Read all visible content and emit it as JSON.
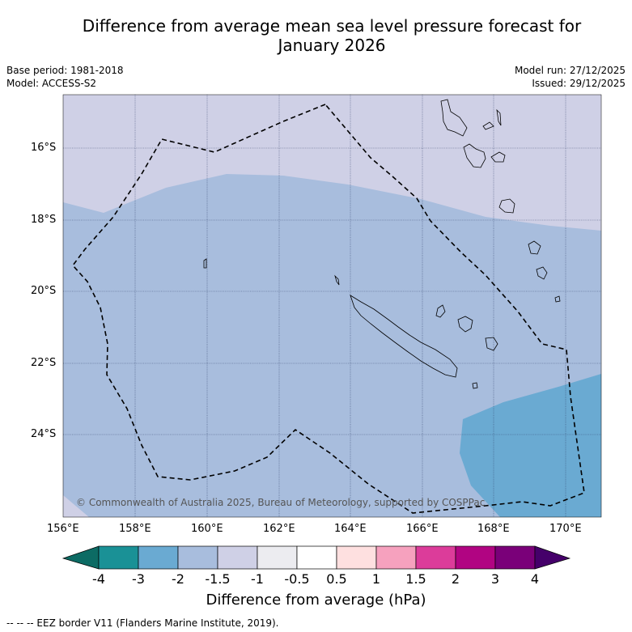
{
  "title_line1": "Difference from average mean sea level pressure forecast for",
  "title_line2": "January 2026",
  "base_period": "Base period: 1981-2018",
  "model": "Model: ACCESS-S2",
  "model_run": "Model run: 27/12/2025",
  "issued": "Issued: 29/12/2025",
  "copyright": "© Commonwealth of Australia 2025, Bureau of Meteorology, supported by COSPPac",
  "footnote": "--  --  -- EEZ border V11 (Flanders Marine Institute, 2019).",
  "map": {
    "lon_range": [
      156,
      171
    ],
    "lat_range": [
      -26.1,
      -14.5
    ],
    "lon_ticks": [
      "156°E",
      "158°E",
      "160°E",
      "162°E",
      "164°E",
      "166°E",
      "168°E",
      "170°E"
    ],
    "lat_ticks": [
      "16°S",
      "18°S",
      "20°S",
      "22°S",
      "24°S"
    ],
    "regions": [
      {
        "name": "diff-band--1.5-to--1",
        "color": "#cfd0e6"
      },
      {
        "name": "diff-band--2-to--1.5",
        "color": "#a8bddd"
      },
      {
        "name": "diff-band--3-to--2",
        "color": "#6aaad2"
      }
    ]
  },
  "colorbar": {
    "title": "Difference from average (hPa)",
    "labels": [
      "-4",
      "-3",
      "-2",
      "-1.5",
      "-1",
      "-0.5",
      "0.5",
      "1",
      "1.5",
      "2",
      "3",
      "4"
    ],
    "colors": [
      "#1a9196",
      "#6aaad2",
      "#a8bddd",
      "#cfd0e6",
      "#ececf0",
      "#ffffff",
      "#fee0e0",
      "#f6a1be",
      "#dc3c9a",
      "#b10482",
      "#7a0079"
    ],
    "under_color": "#0c6b64",
    "over_color": "#45006a"
  }
}
